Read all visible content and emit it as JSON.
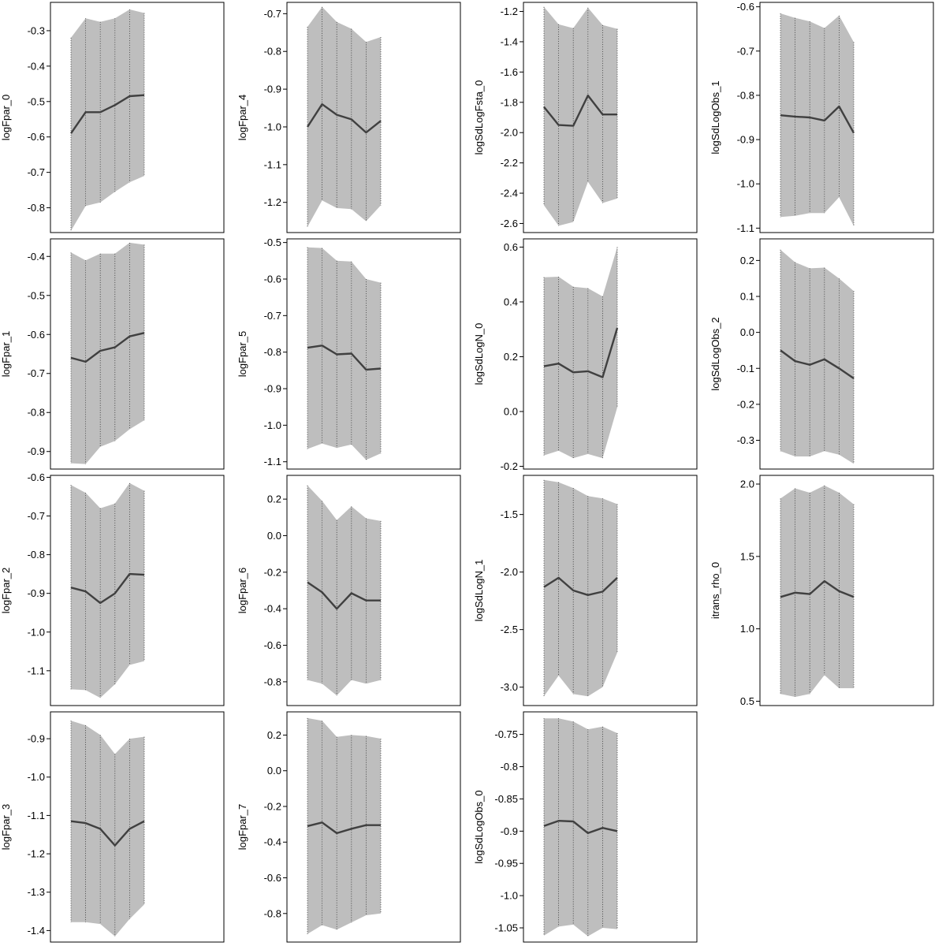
{
  "chart_data": [
    {
      "type": "area",
      "ylabel": "logFpar_0",
      "ylim": [
        -0.87,
        -0.22
      ],
      "yticks": [
        -0.3,
        -0.4,
        -0.5,
        -0.6,
        -0.7,
        -0.8
      ],
      "x": [
        1,
        2,
        3,
        4,
        5,
        6
      ],
      "series": [
        {
          "values": [
            -0.59,
            -0.53,
            -0.53,
            -0.51,
            -0.485,
            -0.482
          ]
        },
        {
          "values": [
            -0.32,
            -0.265,
            -0.275,
            -0.265,
            -0.24,
            -0.25
          ]
        },
        {
          "values": [
            -0.865,
            -0.795,
            -0.785,
            -0.755,
            -0.728,
            -0.71
          ]
        }
      ]
    },
    {
      "type": "area",
      "ylabel": "logFpar_4",
      "ylim": [
        -1.28,
        -0.67
      ],
      "yticks": [
        -0.7,
        -0.8,
        -0.9,
        -1.0,
        -1.1,
        -1.2
      ],
      "x": [
        1,
        2,
        3,
        4,
        5,
        6
      ],
      "series": [
        {
          "values": [
            -1.0,
            -0.94,
            -0.968,
            -0.98,
            -1.015,
            -0.984
          ]
        },
        {
          "values": [
            -0.735,
            -0.682,
            -0.722,
            -0.74,
            -0.775,
            -0.762
          ]
        },
        {
          "values": [
            -1.265,
            -1.195,
            -1.215,
            -1.218,
            -1.25,
            -1.208
          ]
        }
      ]
    },
    {
      "type": "area",
      "ylabel": "logSdLogFsta_0",
      "ylim": [
        -2.66,
        -1.14
      ],
      "yticks": [
        -1.2,
        -1.4,
        -1.6,
        -1.8,
        -2.0,
        -2.2,
        -2.4,
        -2.6
      ],
      "x": [
        1,
        2,
        3,
        4,
        5,
        6
      ],
      "series": [
        {
          "values": [
            -1.83,
            -1.95,
            -1.955,
            -1.755,
            -1.88,
            -1.88
          ]
        },
        {
          "values": [
            -1.17,
            -1.285,
            -1.31,
            -1.175,
            -1.29,
            -1.315
          ]
        },
        {
          "values": [
            -2.48,
            -2.615,
            -2.59,
            -2.325,
            -2.465,
            -2.435
          ]
        }
      ]
    },
    {
      "type": "area",
      "ylabel": "logSdLogObs_1",
      "ylim": [
        -1.11,
        -0.59
      ],
      "yticks": [
        -0.6,
        -0.7,
        -0.8,
        -0.9,
        -1.0,
        -1.1
      ],
      "x": [
        1,
        2,
        3,
        4,
        5,
        6
      ],
      "series": [
        {
          "values": [
            -0.845,
            -0.848,
            -0.85,
            -0.857,
            -0.825,
            -0.885
          ]
        },
        {
          "values": [
            -0.615,
            -0.625,
            -0.633,
            -0.648,
            -0.62,
            -0.68
          ]
        },
        {
          "values": [
            -1.075,
            -1.072,
            -1.066,
            -1.066,
            -1.03,
            -1.095
          ]
        }
      ]
    },
    {
      "type": "area",
      "ylabel": "logFpar_1",
      "ylim": [
        -0.945,
        -0.355
      ],
      "yticks": [
        -0.4,
        -0.5,
        -0.6,
        -0.7,
        -0.8,
        -0.9
      ],
      "x": [
        1,
        2,
        3,
        4,
        5,
        6
      ],
      "series": [
        {
          "values": [
            -0.66,
            -0.67,
            -0.642,
            -0.633,
            -0.605,
            -0.596
          ]
        },
        {
          "values": [
            -0.39,
            -0.41,
            -0.393,
            -0.393,
            -0.365,
            -0.37
          ]
        },
        {
          "values": [
            -0.93,
            -0.932,
            -0.888,
            -0.873,
            -0.843,
            -0.82
          ]
        }
      ]
    },
    {
      "type": "area",
      "ylabel": "logFpar_5",
      "ylim": [
        -1.12,
        -0.49
      ],
      "yticks": [
        -0.5,
        -0.6,
        -0.7,
        -0.8,
        -0.9,
        -1.0,
        -1.1
      ],
      "x": [
        1,
        2,
        3,
        4,
        5,
        6
      ],
      "series": [
        {
          "values": [
            -0.788,
            -0.782,
            -0.806,
            -0.804,
            -0.848,
            -0.845
          ]
        },
        {
          "values": [
            -0.513,
            -0.515,
            -0.55,
            -0.552,
            -0.6,
            -0.61
          ]
        },
        {
          "values": [
            -1.065,
            -1.05,
            -1.062,
            -1.053,
            -1.095,
            -1.077
          ]
        }
      ]
    },
    {
      "type": "area",
      "ylabel": "logSdLogN_0",
      "ylim": [
        -0.21,
        0.63
      ],
      "yticks": [
        0.6,
        0.4,
        0.2,
        0.0,
        -0.2
      ],
      "x": [
        1,
        2,
        3,
        4,
        5,
        6
      ],
      "series": [
        {
          "values": [
            0.165,
            0.175,
            0.143,
            0.147,
            0.125,
            0.305
          ]
        },
        {
          "values": [
            0.49,
            0.492,
            0.455,
            0.45,
            0.42,
            0.6
          ]
        },
        {
          "values": [
            -0.16,
            -0.143,
            -0.17,
            -0.155,
            -0.17,
            0.015
          ]
        }
      ]
    },
    {
      "type": "area",
      "ylabel": "logSdLogObs_2",
      "ylim": [
        -0.38,
        0.26
      ],
      "yticks": [
        0.2,
        0.1,
        0.0,
        -0.1,
        -0.2,
        -0.3
      ],
      "x": [
        1,
        2,
        3,
        4,
        5,
        6
      ],
      "series": [
        {
          "values": [
            -0.05,
            -0.08,
            -0.09,
            -0.075,
            -0.1,
            -0.128
          ]
        },
        {
          "values": [
            0.23,
            0.195,
            0.178,
            0.18,
            0.15,
            0.115
          ]
        },
        {
          "values": [
            -0.33,
            -0.345,
            -0.345,
            -0.33,
            -0.34,
            -0.365
          ]
        }
      ]
    },
    {
      "type": "area",
      "ylabel": "logFpar_2",
      "ylim": [
        -1.19,
        -0.595
      ],
      "yticks": [
        -0.6,
        -0.7,
        -0.8,
        -0.9,
        -1.0,
        -1.1
      ],
      "x": [
        1,
        2,
        3,
        4,
        5,
        6
      ],
      "series": [
        {
          "values": [
            -0.885,
            -0.895,
            -0.925,
            -0.9,
            -0.85,
            -0.852
          ]
        },
        {
          "values": [
            -0.62,
            -0.64,
            -0.68,
            -0.668,
            -0.615,
            -0.635
          ]
        },
        {
          "values": [
            -1.148,
            -1.15,
            -1.17,
            -1.135,
            -1.085,
            -1.075
          ]
        }
      ]
    },
    {
      "type": "area",
      "ylabel": "logFpar_6",
      "ylim": [
        -0.93,
        0.33
      ],
      "yticks": [
        0.2,
        0.0,
        -0.2,
        -0.4,
        -0.6,
        -0.8
      ],
      "x": [
        1,
        2,
        3,
        4,
        5,
        6
      ],
      "series": [
        {
          "values": [
            -0.255,
            -0.31,
            -0.4,
            -0.315,
            -0.355,
            -0.355
          ]
        },
        {
          "values": [
            0.275,
            0.19,
            0.085,
            0.16,
            0.095,
            0.08
          ]
        },
        {
          "values": [
            -0.79,
            -0.81,
            -0.875,
            -0.79,
            -0.81,
            -0.79
          ]
        }
      ]
    },
    {
      "type": "area",
      "ylabel": "logSdLogN_1",
      "ylim": [
        -3.16,
        -1.16
      ],
      "yticks": [
        -1.5,
        -2.0,
        -2.5,
        -3.0
      ],
      "x": [
        1,
        2,
        3,
        4,
        5,
        6
      ],
      "series": [
        {
          "values": [
            -2.13,
            -2.05,
            -2.16,
            -2.2,
            -2.17,
            -2.05
          ]
        },
        {
          "values": [
            -1.2,
            -1.22,
            -1.27,
            -1.34,
            -1.36,
            -1.41
          ]
        },
        {
          "values": [
            -3.08,
            -2.9,
            -3.06,
            -3.08,
            -3.0,
            -2.7
          ]
        }
      ]
    },
    {
      "type": "area",
      "ylabel": "itrans_rho_0",
      "ylim": [
        0.47,
        2.06
      ],
      "yticks": [
        2.0,
        1.5,
        1.0,
        0.5
      ],
      "x": [
        1,
        2,
        3,
        4,
        5,
        6
      ],
      "series": [
        {
          "values": [
            1.22,
            1.25,
            1.24,
            1.33,
            1.26,
            1.22
          ]
        },
        {
          "values": [
            1.9,
            1.97,
            1.94,
            1.99,
            1.94,
            1.86
          ]
        },
        {
          "values": [
            0.55,
            0.53,
            0.55,
            0.68,
            0.59,
            0.59
          ]
        }
      ]
    },
    {
      "type": "area",
      "ylabel": "logFpar_3",
      "ylim": [
        -1.43,
        -0.83
      ],
      "yticks": [
        -0.9,
        -1.0,
        -1.1,
        -1.2,
        -1.3,
        -1.4
      ],
      "x": [
        1,
        2,
        3,
        4,
        5,
        6
      ],
      "series": [
        {
          "values": [
            -1.115,
            -1.12,
            -1.135,
            -1.178,
            -1.135,
            -1.115
          ]
        },
        {
          "values": [
            -0.853,
            -0.865,
            -0.89,
            -0.94,
            -0.9,
            -0.895
          ]
        },
        {
          "values": [
            -1.378,
            -1.378,
            -1.383,
            -1.415,
            -1.37,
            -1.332
          ]
        }
      ]
    },
    {
      "type": "area",
      "ylabel": "logFpar_7",
      "ylim": [
        -0.96,
        0.33
      ],
      "yticks": [
        0.2,
        0.0,
        -0.2,
        -0.4,
        -0.6,
        -0.8
      ],
      "x": [
        1,
        2,
        3,
        4,
        5,
        6
      ],
      "series": [
        {
          "values": [
            -0.31,
            -0.29,
            -0.35,
            -0.325,
            -0.305,
            -0.305
          ]
        },
        {
          "values": [
            0.295,
            0.28,
            0.19,
            0.2,
            0.195,
            0.18
          ]
        },
        {
          "values": [
            -0.915,
            -0.865,
            -0.89,
            -0.85,
            -0.81,
            -0.8
          ]
        }
      ]
    },
    {
      "type": "area",
      "ylabel": "logSdLogObs_0",
      "ylim": [
        -1.072,
        -0.715
      ],
      "yticks": [
        -0.75,
        -0.8,
        -0.85,
        -0.9,
        -0.95,
        -1.0,
        -1.05
      ],
      "x": [
        1,
        2,
        3,
        4,
        5,
        6
      ],
      "series": [
        {
          "values": [
            -0.892,
            -0.884,
            -0.885,
            -0.903,
            -0.895,
            -0.9
          ]
        },
        {
          "values": [
            -0.725,
            -0.725,
            -0.73,
            -0.742,
            -0.738,
            -0.748
          ]
        },
        {
          "values": [
            -1.062,
            -1.048,
            -1.045,
            -1.063,
            -1.05,
            -1.052
          ]
        }
      ]
    }
  ]
}
